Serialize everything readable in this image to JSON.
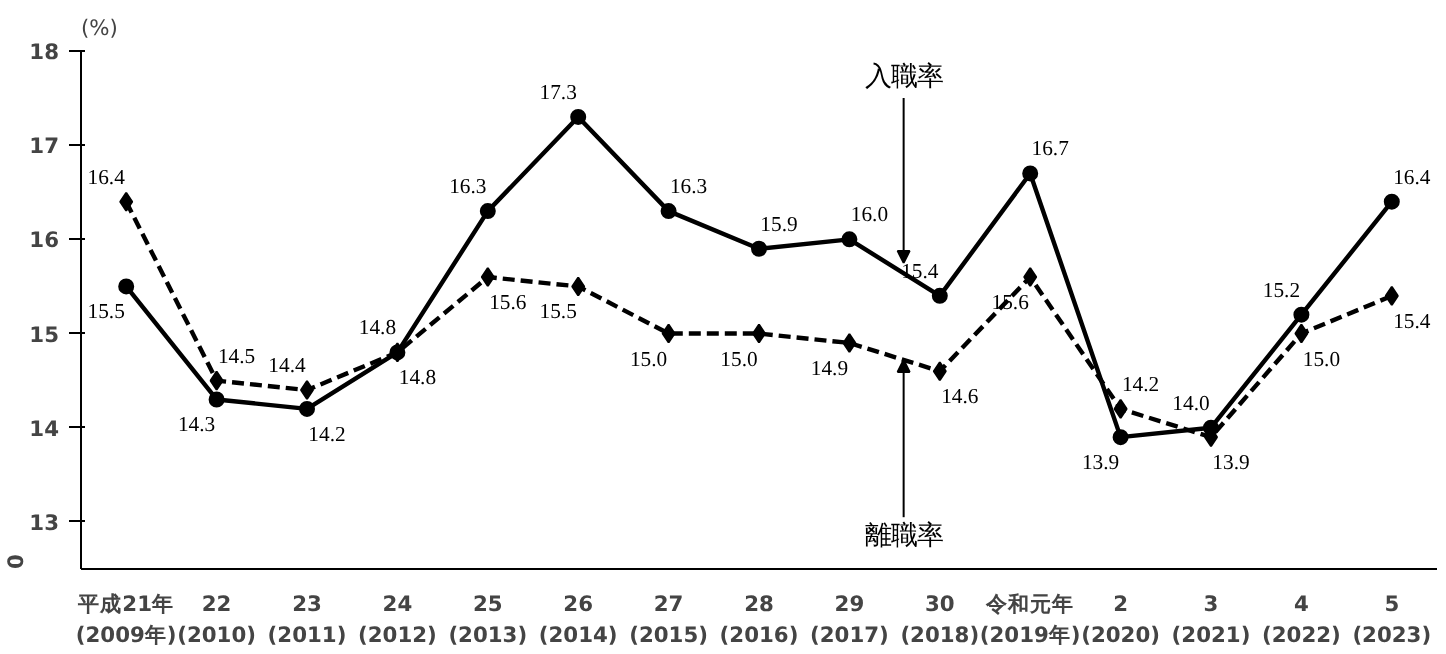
{
  "chart_data": {
    "type": "line",
    "ylabel": "(%)",
    "categories": [
      "平成21年\n(2009年)",
      "22\n(2010)",
      "23\n(2011)",
      "24\n(2012)",
      "25\n(2013)",
      "26\n(2014)",
      "27\n(2015)",
      "28\n(2016)",
      "29\n(2017)",
      "30\n(2018)",
      "令和元年\n(2019年)",
      "2\n(2020)",
      "3\n(2021)",
      "4\n(2022)",
      "5\n(2023)"
    ],
    "series": [
      {
        "name": "入職率",
        "color": "#000000",
        "marker": "circle",
        "line_style": "solid",
        "values": [
          15.5,
          14.3,
          14.2,
          14.8,
          16.3,
          17.3,
          16.3,
          15.9,
          16.0,
          15.4,
          16.7,
          13.9,
          14.0,
          15.2,
          16.4
        ],
        "value_labels": [
          "15.5",
          "14.3",
          "14.2",
          "14.8",
          "16.3",
          "17.3",
          "16.3",
          "15.9",
          "16.0",
          "15.4",
          "16.7",
          "13.9",
          "14.0",
          "15.2",
          "16.4"
        ]
      },
      {
        "name": "離職率",
        "color": "#000000",
        "marker": "diamond",
        "line_style": "dashed",
        "values": [
          16.4,
          14.5,
          14.4,
          14.8,
          15.6,
          15.5,
          15.0,
          15.0,
          14.9,
          14.6,
          15.6,
          14.2,
          13.9,
          15.0,
          15.4
        ],
        "value_labels": [
          "16.4",
          "14.5",
          "14.4",
          "14.8",
          "15.6",
          "15.5",
          "15.0",
          "15.0",
          "14.9",
          "14.6",
          "15.6",
          "14.2",
          "13.9",
          "15.0",
          "15.4"
        ]
      }
    ],
    "ylim": [
      12.5,
      18
    ],
    "yticks": [
      13,
      14,
      15,
      16,
      17,
      18
    ],
    "annotations": [
      "0"
    ],
    "grid": false,
    "legend": false
  }
}
